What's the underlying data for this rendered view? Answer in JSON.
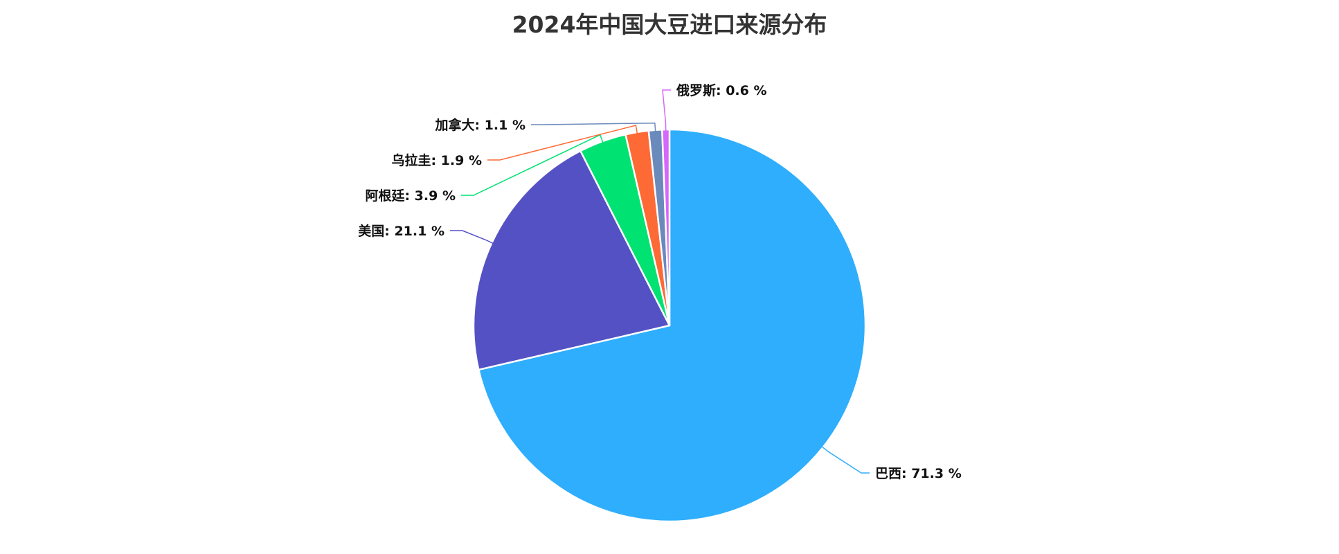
{
  "chart_data": {
    "type": "pie",
    "title": "2024年中国大豆进口来源分布",
    "label_format": "{name}: {value} %",
    "slices": [
      {
        "name": "巴西",
        "value": 71.3,
        "color": "#2eaefc"
      },
      {
        "name": "美国",
        "value": 21.1,
        "color": "#5451c4"
      },
      {
        "name": "阿根廷",
        "value": 3.9,
        "color": "#00e272"
      },
      {
        "name": "乌拉圭",
        "value": 1.9,
        "color": "#fe6a35"
      },
      {
        "name": "加拿大",
        "value": 1.1,
        "color": "#6b8abc"
      },
      {
        "name": "俄罗斯",
        "value": 0.6,
        "color": "#d568fb"
      }
    ],
    "start_angle_deg": 0,
    "direction": "clockwise",
    "legend": "none"
  }
}
